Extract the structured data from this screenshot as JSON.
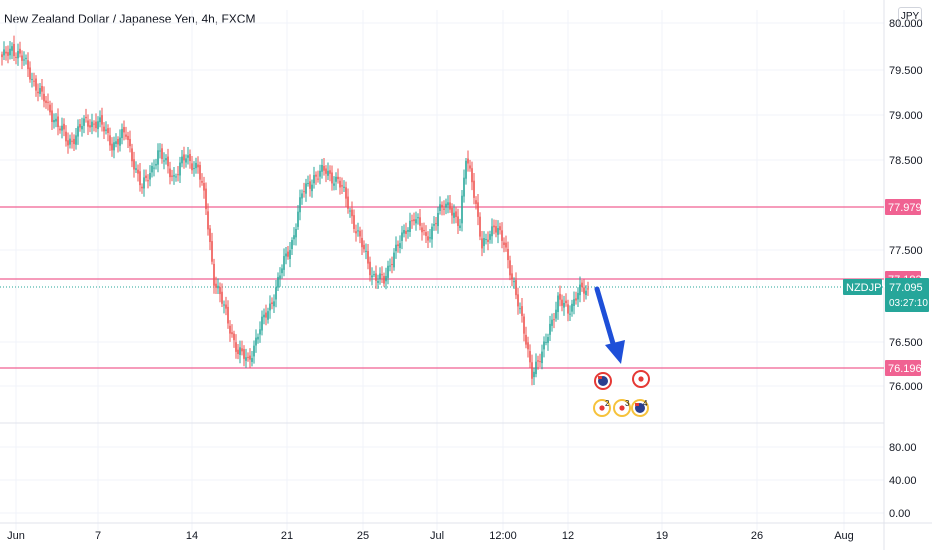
{
  "header": {
    "title": "New Zealand Dollar / Japanese Yen, 4h, FXCM",
    "currency_button": "JPY"
  },
  "colors": {
    "up": "#26a69a",
    "down": "#ef5350",
    "level_line": "#f06292",
    "label_pink": "#f06292",
    "symbol_label": "#26a69a",
    "arrow": "#1e4fd8",
    "event_gold": "#f6c23b",
    "event_red": "#e53935"
  },
  "chart_data": {
    "type": "candlestick",
    "symbol": "NZDJPY",
    "interval": "4h",
    "source": "FXCM",
    "y_ticks": [
      "80.000",
      "79.500",
      "79.000",
      "78.500",
      "77.500",
      "76.500",
      "76.000"
    ],
    "x_ticks": [
      "Jun",
      "7",
      "14",
      "21",
      "25",
      "Jul",
      "12:00",
      "12",
      "19",
      "26",
      "Aug"
    ],
    "ylim": [
      75.8,
      80.05
    ],
    "last_price": "77.095",
    "countdown": "03:27:10",
    "horizontal_levels": [
      {
        "price": 77.979,
        "label": "77.979"
      },
      {
        "price": 77.182,
        "label": "77.182"
      },
      {
        "price": 76.196,
        "label": "76.196"
      }
    ],
    "price_anchors": [
      [
        0,
        79.6
      ],
      [
        5,
        79.75
      ],
      [
        12,
        79.55
      ],
      [
        20,
        79.2
      ],
      [
        27,
        78.95
      ],
      [
        33,
        78.7
      ],
      [
        40,
        78.9
      ],
      [
        48,
        78.95
      ],
      [
        55,
        78.7
      ],
      [
        62,
        78.8
      ],
      [
        70,
        78.2
      ],
      [
        78,
        78.6
      ],
      [
        86,
        78.35
      ],
      [
        92,
        78.55
      ],
      [
        98,
        78.45
      ],
      [
        102,
        78.0
      ],
      [
        106,
        77.25
      ],
      [
        112,
        76.85
      ],
      [
        118,
        76.45
      ],
      [
        123,
        76.35
      ],
      [
        128,
        76.65
      ],
      [
        134,
        76.95
      ],
      [
        140,
        77.35
      ],
      [
        145,
        77.65
      ],
      [
        150,
        78.15
      ],
      [
        156,
        78.35
      ],
      [
        162,
        78.4
      ],
      [
        168,
        78.3
      ],
      [
        173,
        78.05
      ],
      [
        179,
        77.65
      ],
      [
        185,
        77.3
      ],
      [
        191,
        77.2
      ],
      [
        196,
        77.55
      ],
      [
        201,
        77.7
      ],
      [
        206,
        77.95
      ],
      [
        212,
        77.65
      ],
      [
        218,
        77.95
      ],
      [
        224,
        78.05
      ],
      [
        229,
        77.8
      ],
      [
        232,
        78.55
      ],
      [
        235,
        78.35
      ],
      [
        240,
        77.55
      ],
      [
        246,
        77.85
      ],
      [
        251,
        77.6
      ],
      [
        256,
        77.2
      ],
      [
        261,
        76.65
      ],
      [
        265,
        76.25
      ],
      [
        270,
        76.4
      ],
      [
        274,
        76.75
      ],
      [
        278,
        77.0
      ],
      [
        283,
        76.9
      ],
      [
        288,
        77.1
      ],
      [
        293,
        77.1
      ]
    ],
    "events": [
      {
        "icon": "nz-flag-icon",
        "count": ""
      },
      {
        "icon": "event-icon",
        "count": "2"
      },
      {
        "icon": "event-icon",
        "count": "3"
      },
      {
        "icon": "event-icon",
        "count": ""
      },
      {
        "icon": "nz-flag-icon",
        "count": "4"
      }
    ],
    "oscillator": {
      "y_ticks": [
        "80.00",
        "40.00",
        "0.00"
      ]
    },
    "annotation": "arrow-down"
  }
}
